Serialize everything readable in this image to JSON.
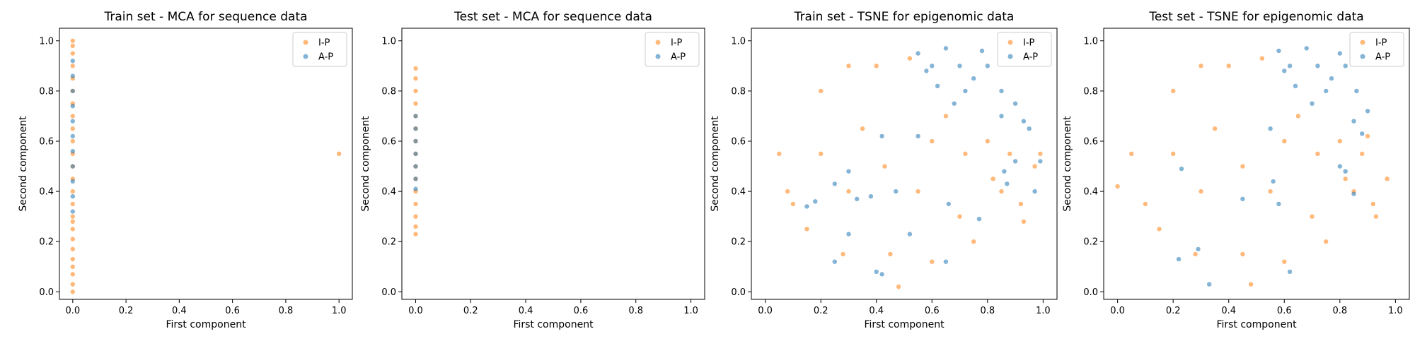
{
  "colors": {
    "ip": "#ff7f0e",
    "ap": "#1f77b4"
  },
  "chart_data": [
    {
      "type": "scatter",
      "title": "Train set - MCA for sequence data",
      "xlabel": "First component",
      "ylabel": "Second component",
      "xlim": [
        -0.05,
        1.05
      ],
      "ylim": [
        -0.03,
        1.05
      ],
      "xticks": [
        "0.0",
        "0.2",
        "0.4",
        "0.6",
        "0.8",
        "1.0"
      ],
      "yticks": [
        "0.0",
        "0.2",
        "0.4",
        "0.6",
        "0.8",
        "1.0"
      ],
      "legend": "top-right",
      "series": [
        {
          "name": "I-P",
          "color": "#ff7f0e",
          "points": [
            [
              0.0,
              0.0
            ],
            [
              0.0,
              0.03
            ],
            [
              0.0,
              0.07
            ],
            [
              0.0,
              0.1
            ],
            [
              0.0,
              0.13
            ],
            [
              0.0,
              0.17
            ],
            [
              0.0,
              0.21
            ],
            [
              0.0,
              0.25
            ],
            [
              0.0,
              0.28
            ],
            [
              0.0,
              0.3
            ],
            [
              0.0,
              0.35
            ],
            [
              0.0,
              0.4
            ],
            [
              0.0,
              0.45
            ],
            [
              0.0,
              0.5
            ],
            [
              0.0,
              0.55
            ],
            [
              0.0,
              0.6
            ],
            [
              0.0,
              0.65
            ],
            [
              0.0,
              0.7
            ],
            [
              0.0,
              0.75
            ],
            [
              0.0,
              0.8
            ],
            [
              0.0,
              0.85
            ],
            [
              0.0,
              0.9
            ],
            [
              0.0,
              0.95
            ],
            [
              0.0,
              0.98
            ],
            [
              0.0,
              1.0
            ],
            [
              1.0,
              0.55
            ]
          ]
        },
        {
          "name": "A-P",
          "color": "#1f77b4",
          "points": [
            [
              0.0,
              0.32
            ],
            [
              0.0,
              0.38
            ],
            [
              0.0,
              0.44
            ],
            [
              0.0,
              0.5
            ],
            [
              0.0,
              0.56
            ],
            [
              0.0,
              0.62
            ],
            [
              0.0,
              0.68
            ],
            [
              0.0,
              0.74
            ],
            [
              0.0,
              0.8
            ],
            [
              0.0,
              0.86
            ],
            [
              0.0,
              0.92
            ]
          ]
        }
      ]
    },
    {
      "type": "scatter",
      "title": "Test set - MCA for sequence data",
      "xlabel": "First component",
      "ylabel": "Second component",
      "xlim": [
        -0.05,
        1.05
      ],
      "ylim": [
        -0.03,
        1.05
      ],
      "xticks": [
        "0.0",
        "0.2",
        "0.4",
        "0.6",
        "0.8",
        "1.0"
      ],
      "yticks": [
        "0.0",
        "0.2",
        "0.4",
        "0.6",
        "0.8",
        "1.0"
      ],
      "legend": "top-right",
      "series": [
        {
          "name": "I-P",
          "color": "#ff7f0e",
          "points": [
            [
              0.0,
              0.23
            ],
            [
              0.0,
              0.26
            ],
            [
              0.0,
              0.3
            ],
            [
              0.0,
              0.35
            ],
            [
              0.0,
              0.4
            ],
            [
              0.0,
              0.45
            ],
            [
              0.0,
              0.5
            ],
            [
              0.0,
              0.55
            ],
            [
              0.0,
              0.6
            ],
            [
              0.0,
              0.65
            ],
            [
              0.0,
              0.7
            ],
            [
              0.0,
              0.75
            ],
            [
              0.0,
              0.8
            ],
            [
              0.0,
              0.85
            ],
            [
              0.0,
              0.89
            ]
          ]
        },
        {
          "name": "A-P",
          "color": "#1f77b4",
          "points": [
            [
              0.0,
              0.41
            ],
            [
              0.0,
              0.45
            ],
            [
              0.0,
              0.5
            ],
            [
              0.0,
              0.55
            ],
            [
              0.0,
              0.6
            ],
            [
              0.0,
              0.65
            ],
            [
              0.0,
              0.7
            ]
          ]
        }
      ]
    },
    {
      "type": "scatter",
      "title": "Train set - TSNE for epigenomic data",
      "xlabel": "First component",
      "ylabel": "Second component",
      "xlim": [
        -0.05,
        1.05
      ],
      "ylim": [
        -0.03,
        1.05
      ],
      "xticks": [
        "0.0",
        "0.2",
        "0.4",
        "0.6",
        "0.8",
        "1.0"
      ],
      "yticks": [
        "0.0",
        "0.2",
        "0.4",
        "0.6",
        "0.8",
        "1.0"
      ],
      "legend": "top-right",
      "series": [
        {
          "name": "I-P",
          "color": "#ff7f0e",
          "points": [
            [
              0.43,
              0.5
            ],
            [
              0.3,
              0.4
            ],
            [
              0.55,
              0.4
            ],
            [
              0.35,
              0.65
            ],
            [
              0.2,
              0.55
            ],
            [
              0.6,
              0.6
            ],
            [
              0.45,
              0.15
            ],
            [
              0.7,
              0.3
            ],
            [
              0.1,
              0.35
            ],
            [
              0.05,
              0.55
            ],
            [
              0.2,
              0.8
            ],
            [
              0.4,
              0.9
            ],
            [
              0.28,
              0.15
            ],
            [
              0.6,
              0.12
            ],
            [
              0.48,
              0.02
            ],
            [
              0.82,
              0.45
            ],
            [
              0.88,
              0.55
            ],
            [
              0.92,
              0.35
            ],
            [
              0.97,
              0.5
            ],
            [
              0.99,
              0.55
            ],
            [
              0.15,
              0.25
            ],
            [
              0.75,
              0.2
            ],
            [
              0.8,
              0.6
            ],
            [
              0.85,
              0.4
            ],
            [
              0.93,
              0.28
            ],
            [
              0.08,
              0.4
            ],
            [
              0.3,
              0.9
            ],
            [
              0.52,
              0.93
            ],
            [
              0.65,
              0.7
            ],
            [
              0.72,
              0.55
            ]
          ]
        },
        {
          "name": "A-P",
          "color": "#1f77b4",
          "points": [
            [
              0.55,
              0.95
            ],
            [
              0.6,
              0.9
            ],
            [
              0.65,
              0.97
            ],
            [
              0.7,
              0.9
            ],
            [
              0.75,
              0.85
            ],
            [
              0.8,
              0.9
            ],
            [
              0.72,
              0.8
            ],
            [
              0.85,
              0.8
            ],
            [
              0.9,
              0.75
            ],
            [
              0.62,
              0.82
            ],
            [
              0.58,
              0.88
            ],
            [
              0.68,
              0.75
            ],
            [
              0.78,
              0.96
            ],
            [
              0.85,
              0.7
            ],
            [
              0.93,
              0.68
            ],
            [
              0.95,
              0.65
            ],
            [
              0.55,
              0.62
            ],
            [
              0.42,
              0.62
            ],
            [
              0.3,
              0.48
            ],
            [
              0.18,
              0.36
            ],
            [
              0.25,
              0.43
            ],
            [
              0.33,
              0.37
            ],
            [
              0.38,
              0.38
            ],
            [
              0.47,
              0.4
            ],
            [
              0.66,
              0.35
            ],
            [
              0.3,
              0.23
            ],
            [
              0.52,
              0.23
            ],
            [
              0.4,
              0.08
            ],
            [
              0.25,
              0.12
            ],
            [
              0.42,
              0.07
            ],
            [
              0.65,
              0.12
            ],
            [
              0.77,
              0.29
            ],
            [
              0.87,
              0.43
            ],
            [
              0.9,
              0.52
            ],
            [
              0.99,
              0.52
            ],
            [
              0.97,
              0.4
            ],
            [
              0.86,
              0.48
            ],
            [
              0.15,
              0.34
            ]
          ]
        }
      ]
    },
    {
      "type": "scatter",
      "title": "Test set - TSNE for epigenomic data",
      "xlabel": "First component",
      "ylabel": "Second component",
      "xlim": [
        -0.05,
        1.05
      ],
      "ylim": [
        -0.03,
        1.05
      ],
      "xticks": [
        "0.0",
        "0.2",
        "0.4",
        "0.6",
        "0.8",
        "1.0"
      ],
      "yticks": [
        "0.0",
        "0.2",
        "0.4",
        "0.6",
        "0.8",
        "1.0"
      ],
      "legend": "top-right",
      "series": [
        {
          "name": "I-P",
          "color": "#ff7f0e",
          "points": [
            [
              0.45,
              0.5
            ],
            [
              0.3,
              0.4
            ],
            [
              0.55,
              0.4
            ],
            [
              0.35,
              0.65
            ],
            [
              0.2,
              0.55
            ],
            [
              0.6,
              0.6
            ],
            [
              0.45,
              0.15
            ],
            [
              0.7,
              0.3
            ],
            [
              0.1,
              0.35
            ],
            [
              0.05,
              0.55
            ],
            [
              0.2,
              0.8
            ],
            [
              0.4,
              0.9
            ],
            [
              0.28,
              0.15
            ],
            [
              0.6,
              0.12
            ],
            [
              0.48,
              0.03
            ],
            [
              0.82,
              0.45
            ],
            [
              0.88,
              0.55
            ],
            [
              0.92,
              0.35
            ],
            [
              0.97,
              0.45
            ],
            [
              0.15,
              0.25
            ],
            [
              0.75,
              0.2
            ],
            [
              0.8,
              0.6
            ],
            [
              0.85,
              0.4
            ],
            [
              0.93,
              0.3
            ],
            [
              0.0,
              0.42
            ],
            [
              0.3,
              0.9
            ],
            [
              0.52,
              0.93
            ],
            [
              0.65,
              0.7
            ],
            [
              0.72,
              0.55
            ],
            [
              0.9,
              0.62
            ]
          ]
        },
        {
          "name": "A-P",
          "color": "#1f77b4",
          "points": [
            [
              0.58,
              0.96
            ],
            [
              0.62,
              0.9
            ],
            [
              0.68,
              0.97
            ],
            [
              0.72,
              0.9
            ],
            [
              0.77,
              0.85
            ],
            [
              0.82,
              0.9
            ],
            [
              0.75,
              0.8
            ],
            [
              0.86,
              0.8
            ],
            [
              0.9,
              0.72
            ],
            [
              0.64,
              0.82
            ],
            [
              0.6,
              0.88
            ],
            [
              0.7,
              0.75
            ],
            [
              0.8,
              0.95
            ],
            [
              0.85,
              0.68
            ],
            [
              0.88,
              0.63
            ],
            [
              0.55,
              0.65
            ],
            [
              0.23,
              0.49
            ],
            [
              0.45,
              0.37
            ],
            [
              0.58,
              0.35
            ],
            [
              0.56,
              0.44
            ],
            [
              0.22,
              0.13
            ],
            [
              0.29,
              0.17
            ],
            [
              0.82,
              0.48
            ],
            [
              0.85,
              0.39
            ],
            [
              0.8,
              0.5
            ],
            [
              0.33,
              0.03
            ],
            [
              0.62,
              0.08
            ]
          ]
        }
      ]
    }
  ]
}
